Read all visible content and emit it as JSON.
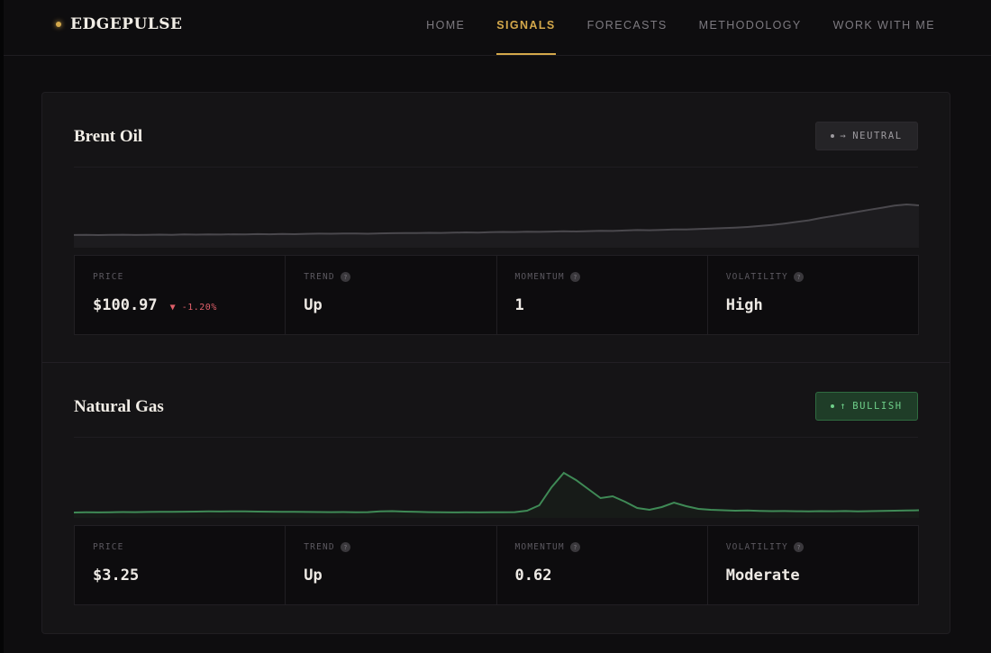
{
  "brand": {
    "name": "EDGEPULSE"
  },
  "nav": [
    {
      "label": "HOME",
      "active": false
    },
    {
      "label": "SIGNALS",
      "active": true
    },
    {
      "label": "FORECASTS",
      "active": false
    },
    {
      "label": "METHODOLOGY",
      "active": false
    },
    {
      "label": "WORK WITH ME",
      "active": false
    }
  ],
  "colors": {
    "accent": "#d4a84b",
    "bullish": "#6fd08a",
    "negative": "#e0606a",
    "neutral_line": "#4a484d"
  },
  "signals": [
    {
      "title": "Brent Oil",
      "badge": {
        "icon": "arrow-right-icon",
        "glyph": "→",
        "label": "NEUTRAL"
      },
      "stats": {
        "price_label": "PRICE",
        "price": "$100.97",
        "change_glyph": "▼",
        "change": "-1.20%",
        "trend_label": "TREND",
        "trend": "Up",
        "momentum_label": "MOMENTUM",
        "momentum": "1",
        "volatility_label": "VOLATILITY",
        "volatility": "High"
      },
      "sparkline": [
        52,
        52.3,
        51.8,
        52.1,
        52.4,
        51.9,
        52.2,
        52.6,
        52.3,
        52.8,
        52.5,
        53,
        52.7,
        53.2,
        52.9,
        53.4,
        53.1,
        53.6,
        53.3,
        53.9,
        54.2,
        54,
        54.5,
        54.3,
        54.1,
        54.6,
        54.9,
        55.2,
        55,
        55.5,
        55.3,
        55.8,
        56.2,
        56,
        56.6,
        57,
        56.8,
        57.3,
        57.1,
        57.6,
        58,
        57.8,
        58.3,
        59,
        58.7,
        59.4,
        60.1,
        59.8,
        60.4,
        61.2,
        61,
        61.8,
        62.5,
        63.2,
        64,
        65.2,
        66.8,
        68.5,
        70.8,
        73.5,
        76.2,
        80.1,
        83.4,
        86.7,
        90.3,
        93.8,
        97.1,
        100.5,
        102.4,
        100.97
      ]
    },
    {
      "title": "Natural Gas",
      "badge": {
        "icon": "arrow-up-icon",
        "glyph": "↑",
        "label": "BULLISH"
      },
      "stats": {
        "price_label": "PRICE",
        "price": "$3.25",
        "trend_label": "TREND",
        "trend": "Up",
        "momentum_label": "MOMENTUM",
        "momentum": "0.62",
        "volatility_label": "VOLATILITY",
        "volatility": "Moderate"
      },
      "sparkline": [
        3.0,
        3.02,
        3.01,
        3.03,
        3.05,
        3.04,
        3.06,
        3.08,
        3.07,
        3.09,
        3.1,
        3.12,
        3.11,
        3.13,
        3.12,
        3.1,
        3.09,
        3.07,
        3.08,
        3.06,
        3.05,
        3.04,
        3.05,
        3.03,
        3.04,
        3.12,
        3.15,
        3.1,
        3.08,
        3.04,
        3.02,
        3.01,
        3.02,
        3.01,
        3.03,
        3.02,
        3.04,
        3.2,
        3.8,
        5.8,
        7.4,
        6.6,
        5.6,
        4.6,
        4.8,
        4.2,
        3.5,
        3.3,
        3.6,
        4.1,
        3.7,
        3.4,
        3.3,
        3.25,
        3.2,
        3.22,
        3.18,
        3.15,
        3.16,
        3.14,
        3.13,
        3.15,
        3.14,
        3.16,
        3.12,
        3.15,
        3.18,
        3.2,
        3.22,
        3.25
      ]
    }
  ]
}
